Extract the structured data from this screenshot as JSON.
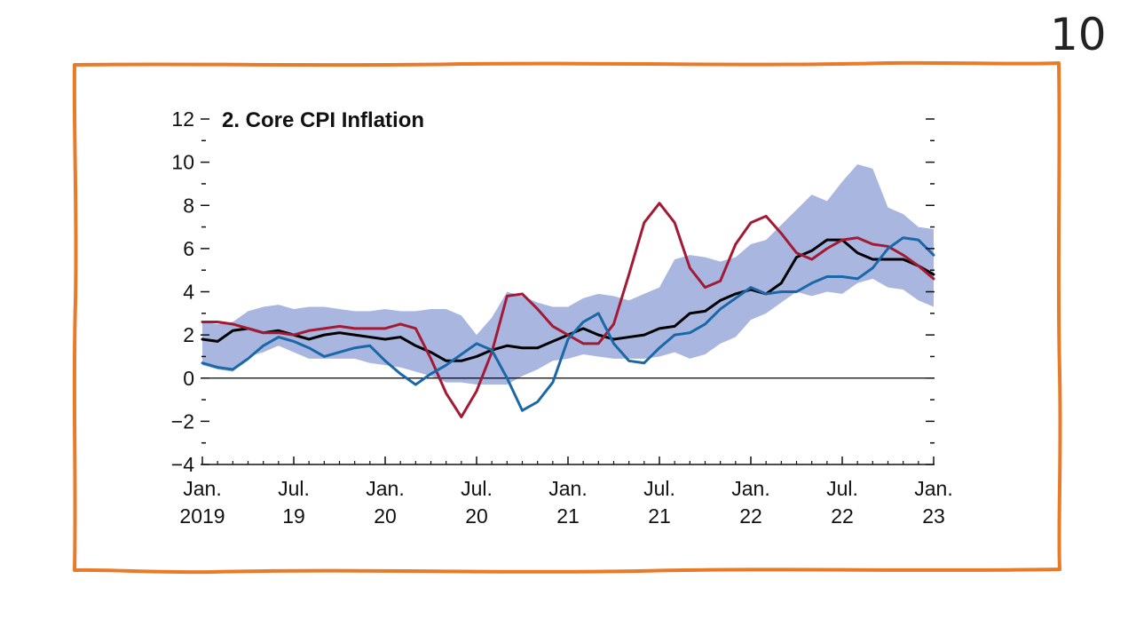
{
  "slide": {
    "number": "10",
    "frame_color": "#e87a2a"
  },
  "chart_data": {
    "type": "line",
    "title": "2. Core CPI Inflation",
    "xlabel": "",
    "ylabel": "",
    "ylim": [
      -4,
      12
    ],
    "y_ticks": [
      -4,
      -2,
      0,
      2,
      4,
      6,
      8,
      10,
      12
    ],
    "y_tick_labels": [
      "−4",
      "−2",
      "0",
      "2",
      "4",
      "6",
      "8",
      "10",
      "12"
    ],
    "x_range": [
      0,
      48
    ],
    "x_ticks": [
      {
        "x": 0,
        "line1": "Jan.",
        "line2": "2019"
      },
      {
        "x": 6,
        "line1": "Jul.",
        "line2": "19"
      },
      {
        "x": 12,
        "line1": "Jan.",
        "line2": "20"
      },
      {
        "x": 18,
        "line1": "Jul.",
        "line2": "20"
      },
      {
        "x": 24,
        "line1": "Jan.",
        "line2": "21"
      },
      {
        "x": 30,
        "line1": "Jul.",
        "line2": "21"
      },
      {
        "x": 36,
        "line1": "Jan.",
        "line2": "22"
      },
      {
        "x": 42,
        "line1": "Jul.",
        "line2": "22"
      },
      {
        "x": 48,
        "line1": "Jan.",
        "line2": "23"
      }
    ],
    "band": {
      "name": "Range",
      "color": "#a9b6e0",
      "x": [
        0,
        1,
        2,
        3,
        4,
        5,
        6,
        7,
        8,
        9,
        10,
        11,
        12,
        13,
        14,
        15,
        16,
        17,
        18,
        19,
        20,
        21,
        22,
        23,
        24,
        25,
        26,
        27,
        28,
        29,
        30,
        31,
        32,
        33,
        34,
        35,
        36,
        37,
        38,
        39,
        40,
        41,
        42,
        43,
        44,
        45,
        46,
        47,
        48
      ],
      "upper": [
        2.6,
        2.5,
        2.6,
        3.1,
        3.3,
        3.4,
        3.2,
        3.3,
        3.3,
        3.2,
        3.1,
        3.1,
        3.2,
        3.1,
        3.1,
        3.2,
        3.2,
        2.9,
        2.0,
        2.8,
        4.0,
        3.8,
        3.5,
        3.3,
        3.3,
        3.7,
        3.9,
        3.8,
        3.6,
        3.9,
        4.2,
        5.5,
        5.7,
        5.6,
        5.4,
        5.6,
        6.2,
        6.4,
        7.1,
        7.8,
        8.5,
        8.2,
        9.1,
        9.9,
        9.7,
        7.9,
        7.6,
        7.0,
        6.9
      ],
      "lower": [
        0.6,
        0.4,
        0.3,
        1.0,
        1.2,
        1.5,
        1.2,
        0.9,
        0.9,
        0.9,
        0.9,
        0.7,
        0.6,
        0.5,
        0.3,
        0.1,
        -0.2,
        -0.2,
        -0.3,
        -0.3,
        -0.3,
        0.1,
        0.4,
        0.8,
        0.9,
        1.1,
        1.0,
        0.9,
        0.9,
        0.9,
        1.0,
        1.2,
        0.9,
        1.1,
        1.6,
        1.9,
        2.7,
        3.0,
        3.5,
        4.0,
        3.8,
        4.0,
        3.9,
        4.4,
        4.6,
        4.2,
        4.1,
        3.6,
        3.3
      ]
    },
    "series": [
      {
        "name": "Black line",
        "color": "#000000",
        "x": [
          0,
          1,
          2,
          3,
          4,
          5,
          6,
          7,
          8,
          9,
          10,
          11,
          12,
          13,
          14,
          15,
          16,
          17,
          18,
          19,
          20,
          21,
          22,
          23,
          24,
          25,
          26,
          27,
          28,
          29,
          30,
          31,
          32,
          33,
          34,
          35,
          36,
          37,
          38,
          39,
          40,
          41,
          42,
          43,
          44,
          45,
          46,
          47,
          48
        ],
        "values": [
          1.8,
          1.7,
          2.2,
          2.3,
          2.1,
          2.2,
          2.0,
          1.8,
          2.0,
          2.1,
          2.0,
          1.9,
          1.8,
          1.9,
          1.5,
          1.2,
          0.8,
          0.8,
          1.0,
          1.3,
          1.5,
          1.4,
          1.4,
          1.7,
          2.0,
          2.3,
          2.0,
          1.8,
          1.9,
          2.0,
          2.3,
          2.4,
          3.0,
          3.1,
          3.6,
          3.9,
          4.1,
          3.9,
          4.4,
          5.6,
          5.9,
          6.4,
          6.4,
          5.8,
          5.5,
          5.5,
          5.5,
          5.2,
          4.8
        ]
      },
      {
        "name": "Red line",
        "color": "#a31a34",
        "x": [
          0,
          1,
          2,
          3,
          4,
          5,
          6,
          7,
          8,
          9,
          10,
          11,
          12,
          13,
          14,
          15,
          16,
          17,
          18,
          19,
          20,
          21,
          22,
          23,
          24,
          25,
          26,
          27,
          28,
          29,
          30,
          31,
          32,
          33,
          34,
          35,
          36,
          37,
          38,
          39,
          40,
          41,
          42,
          43,
          44,
          45,
          46,
          47,
          48
        ],
        "values": [
          2.6,
          2.6,
          2.5,
          2.3,
          2.1,
          2.1,
          2.0,
          2.2,
          2.3,
          2.4,
          2.3,
          2.3,
          2.3,
          2.5,
          2.3,
          0.9,
          -0.7,
          -1.8,
          -0.6,
          1.2,
          3.8,
          3.9,
          3.2,
          2.4,
          2.0,
          1.6,
          1.6,
          2.5,
          4.8,
          7.2,
          8.1,
          7.2,
          5.1,
          4.2,
          4.5,
          6.2,
          7.2,
          7.5,
          6.7,
          5.8,
          5.5,
          6.0,
          6.4,
          6.5,
          6.2,
          6.1,
          5.7,
          5.2,
          4.6
        ]
      },
      {
        "name": "Blue line",
        "color": "#1a68a8",
        "x": [
          0,
          1,
          2,
          3,
          4,
          5,
          6,
          7,
          8,
          9,
          10,
          11,
          12,
          13,
          14,
          15,
          16,
          17,
          18,
          19,
          20,
          21,
          22,
          23,
          24,
          25,
          26,
          27,
          28,
          29,
          30,
          31,
          32,
          33,
          34,
          35,
          36,
          37,
          38,
          39,
          40,
          41,
          42,
          43,
          44,
          45,
          46,
          47,
          48
        ],
        "values": [
          0.7,
          0.5,
          0.4,
          0.9,
          1.5,
          1.9,
          1.7,
          1.4,
          1.0,
          1.2,
          1.4,
          1.5,
          0.8,
          0.2,
          -0.3,
          0.2,
          0.6,
          1.1,
          1.6,
          1.3,
          0.0,
          -1.5,
          -1.1,
          -0.2,
          1.8,
          2.6,
          3.0,
          1.6,
          0.8,
          0.7,
          1.4,
          2.0,
          2.1,
          2.5,
          3.2,
          3.7,
          4.2,
          3.9,
          4.0,
          4.0,
          4.4,
          4.7,
          4.7,
          4.6,
          5.1,
          6.0,
          6.5,
          6.4,
          5.7
        ]
      }
    ]
  }
}
